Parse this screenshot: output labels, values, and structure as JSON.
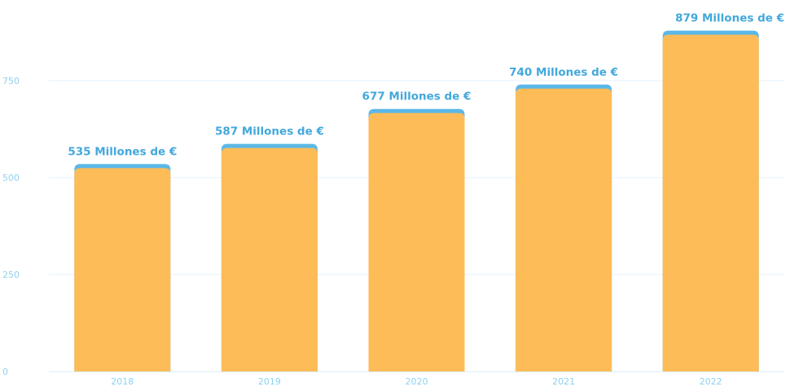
{
  "chart_data": {
    "type": "bar",
    "title": "",
    "xlabel": "",
    "ylabel": "",
    "categories": [
      "2018",
      "2019",
      "2020",
      "2021",
      "2022"
    ],
    "values": [
      535,
      587,
      677,
      740,
      879
    ],
    "data_labels": [
      "535 Millones de €",
      "587 Millones de €",
      "677 Millones de €",
      "740 Millones de €",
      "879 Millones de €"
    ],
    "ylim": [
      0,
      900
    ],
    "yticks": [
      0,
      250,
      500,
      750
    ],
    "ytick_labels": [
      "0",
      "250",
      "500",
      "750"
    ],
    "grid": true,
    "legend": "none",
    "colors": {
      "bar_fill": "#fdbc58",
      "bar_cap": "#5bb8e8",
      "label": "#43a8dc",
      "tick": "#8fd1ee",
      "grid": "#e3f3fb"
    }
  }
}
